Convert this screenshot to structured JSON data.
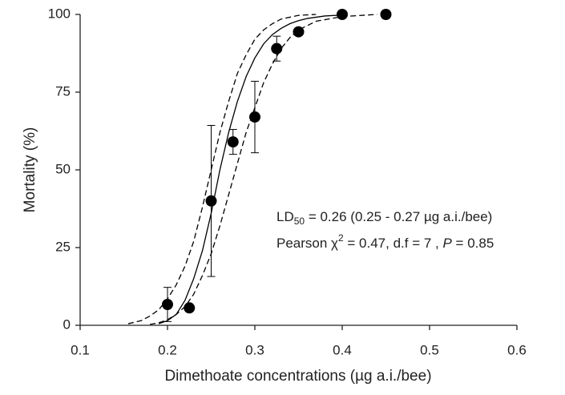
{
  "chart_data": {
    "type": "scatter",
    "x_label": "Dimethoate concentrations (µg a.i./bee)",
    "y_label": "Mortality (%)",
    "annotation_1": [
      "LD",
      "50",
      " = 0.26 (0.25 - 0.27 µg a.i./bee)"
    ],
    "annotation_2": [
      "Pearson ",
      "χ",
      "2",
      " = 0.47, d.f = 7 , ",
      "P",
      " = 0.85"
    ],
    "xlim": [
      0.1,
      0.6
    ],
    "xticks": [
      0.1,
      0.2,
      0.3,
      0.4,
      0.5,
      0.6
    ],
    "ylim": [
      0,
      100
    ],
    "yticks": [
      0,
      25,
      50,
      75,
      100
    ],
    "color": "#000000",
    "points": {
      "x": [
        0.2,
        0.225,
        0.25,
        0.275,
        0.3,
        0.325,
        0.35,
        0.4,
        0.45
      ],
      "values": [
        6.7,
        5.6,
        40,
        59,
        67,
        89,
        94.4,
        100,
        100
      ],
      "errors": [
        5.5,
        null,
        24.3,
        4,
        11.5,
        4,
        null,
        null,
        null
      ]
    },
    "fit": {
      "x": [
        0.19,
        0.2,
        0.21,
        0.22,
        0.23,
        0.24,
        0.25,
        0.26,
        0.27,
        0.28,
        0.29,
        0.3,
        0.31,
        0.32,
        0.33,
        0.34,
        0.35,
        0.36,
        0.38,
        0.4
      ],
      "values": [
        0.5,
        1.5,
        3.5,
        8,
        15,
        24,
        36,
        50,
        62,
        72,
        80,
        86,
        90.5,
        93.5,
        95.5,
        97,
        98,
        98.7,
        99.5,
        99.8
      ]
    },
    "upper": {
      "x": [
        0.155,
        0.17,
        0.18,
        0.19,
        0.2,
        0.21,
        0.22,
        0.23,
        0.24,
        0.25,
        0.26,
        0.27,
        0.28,
        0.29,
        0.3,
        0.31,
        0.32,
        0.33,
        0.35,
        0.37
      ],
      "values": [
        0.5,
        1.5,
        3,
        5,
        8.5,
        13,
        19,
        27,
        38,
        50,
        62,
        72,
        81,
        87,
        92,
        95,
        97,
        98.5,
        99.7,
        100
      ]
    },
    "lower": {
      "x": [
        0.18,
        0.19,
        0.2,
        0.21,
        0.22,
        0.23,
        0.24,
        0.25,
        0.26,
        0.27,
        0.28,
        0.29,
        0.3,
        0.31,
        0.32,
        0.33,
        0.34,
        0.35,
        0.37,
        0.4,
        0.44
      ],
      "values": [
        0.3,
        0.8,
        1.8,
        3.5,
        6,
        10,
        16,
        23,
        32,
        42,
        52,
        62,
        70,
        78,
        84,
        89,
        92.5,
        95,
        97.8,
        99.3,
        100
      ]
    }
  }
}
